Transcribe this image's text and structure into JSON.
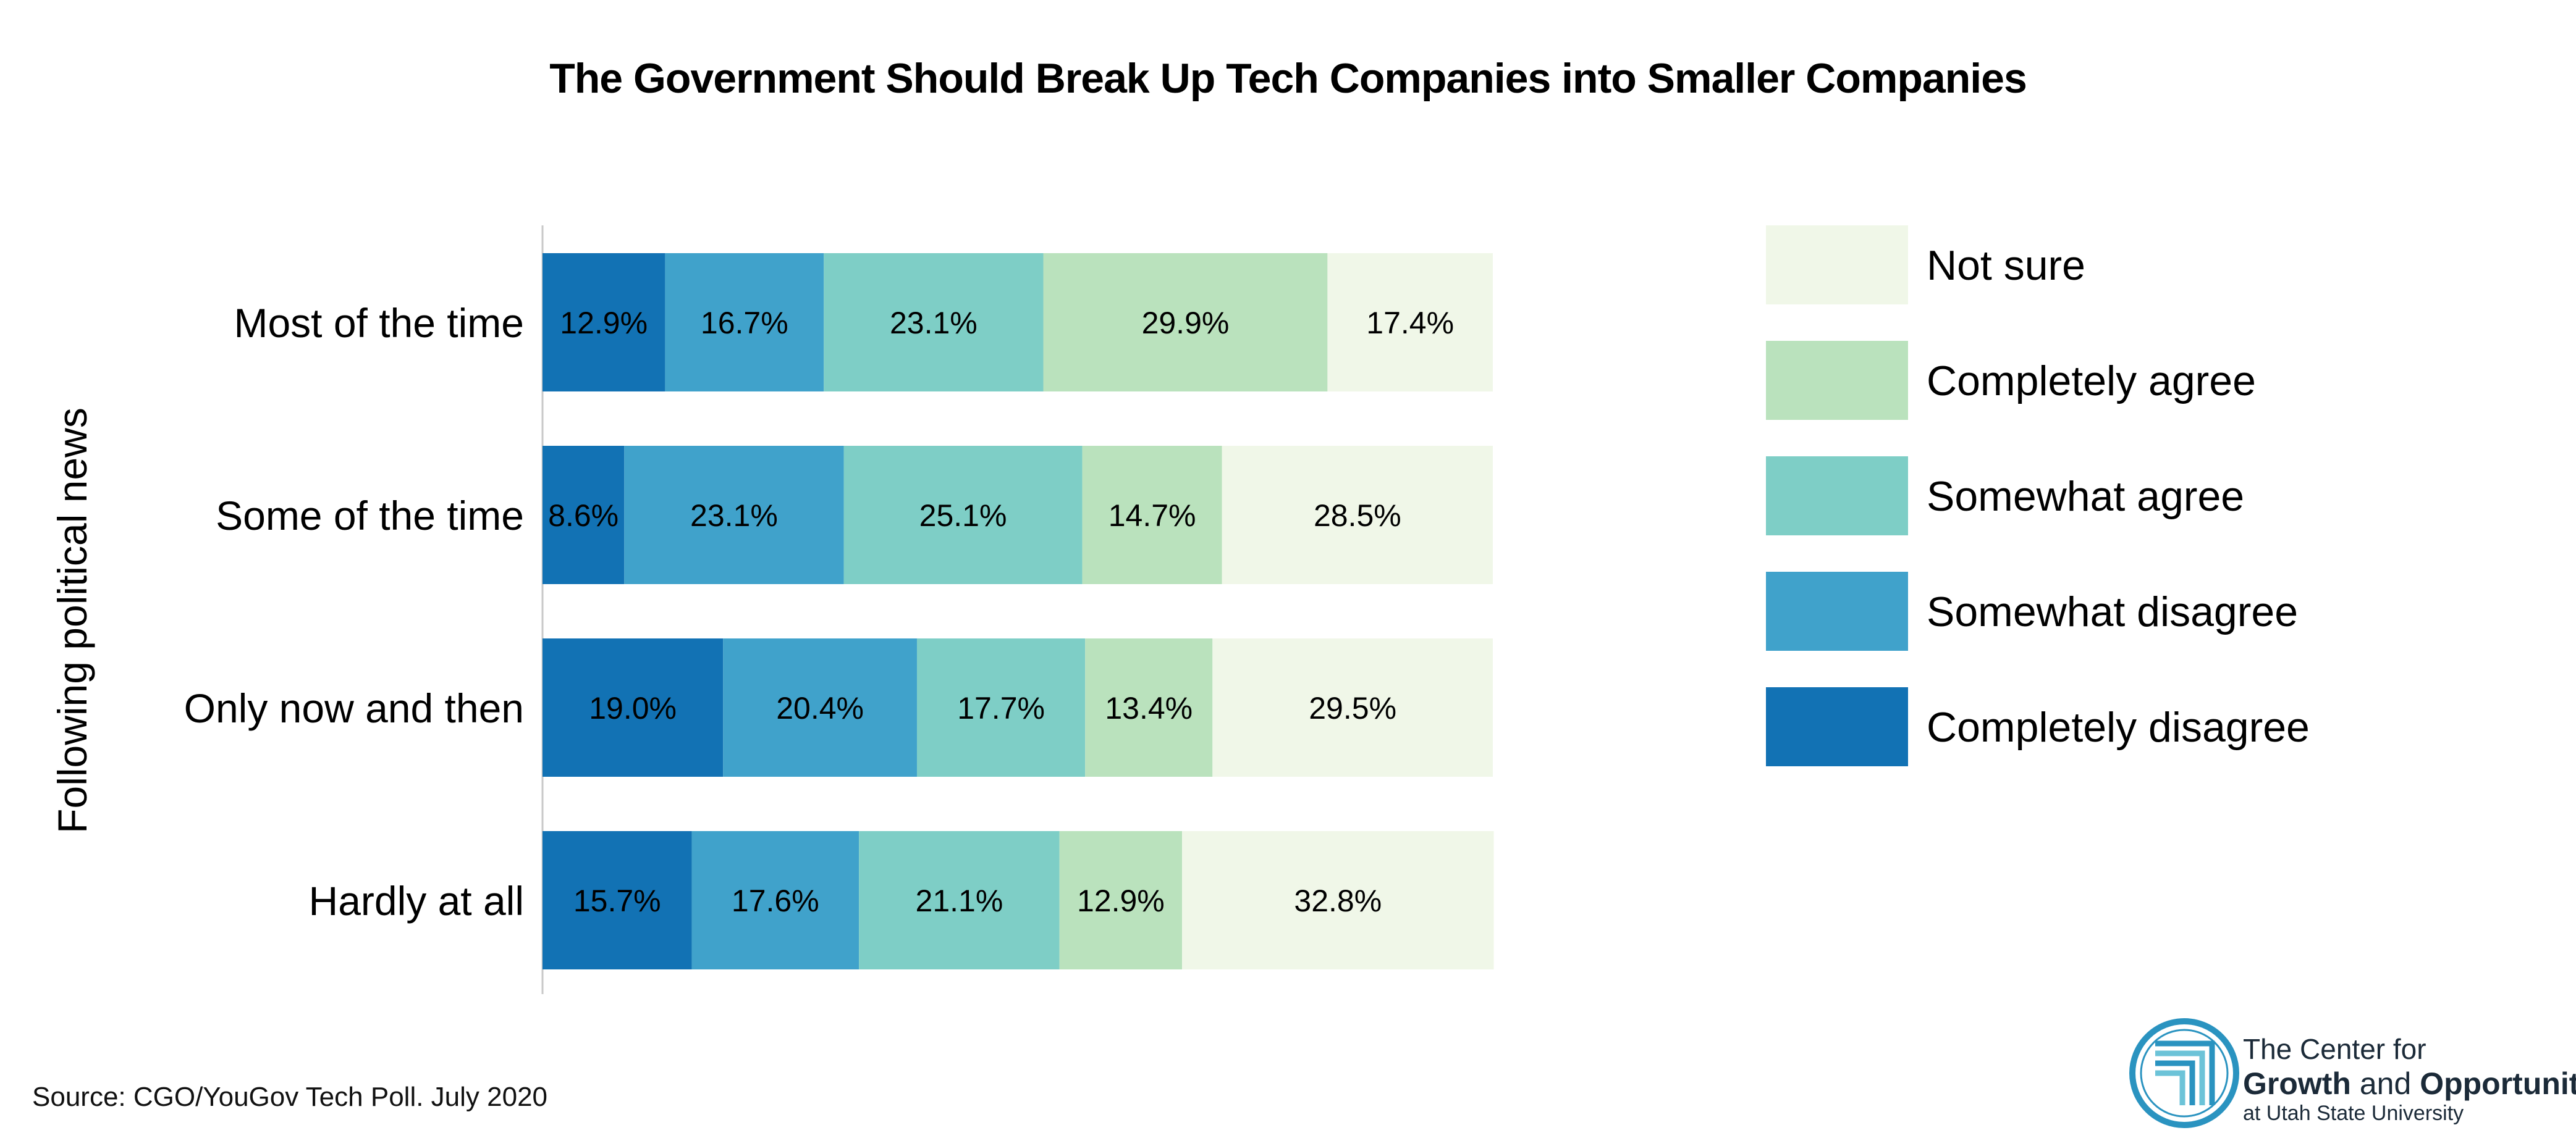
{
  "chart_data": {
    "type": "bar",
    "orientation": "horizontal",
    "stacked": true,
    "title": "The Government Should Break Up Tech Companies into Smaller Companies",
    "ylabel": "Following political news",
    "categories": [
      "Most of the time",
      "Some of the time",
      "Only now and then",
      "Hardly at all"
    ],
    "series": [
      {
        "name": "Completely disagree",
        "values": [
          12.9,
          8.6,
          19.0,
          15.7
        ],
        "labels": [
          "12.9%",
          "8.6%",
          "19.0%",
          "15.7%"
        ],
        "color": "#1272b4"
      },
      {
        "name": "Somewhat disagree",
        "values": [
          16.7,
          23.1,
          20.4,
          17.6
        ],
        "labels": [
          "16.7%",
          "23.1%",
          "20.4%",
          "17.6%"
        ],
        "color": "#40a2cb"
      },
      {
        "name": "Somewhat agree",
        "values": [
          23.1,
          25.1,
          17.7,
          21.1
        ],
        "labels": [
          "23.1%",
          "25.1%",
          "17.7%",
          "21.1%"
        ],
        "color": "#7ecec6"
      },
      {
        "name": "Completely agree",
        "values": [
          29.9,
          14.7,
          13.4,
          12.9
        ],
        "labels": [
          "29.9%",
          "14.7%",
          "13.4%",
          "12.9%"
        ],
        "color": "#bae2bd"
      },
      {
        "name": "Not sure",
        "values": [
          17.4,
          28.5,
          29.5,
          32.8
        ],
        "labels": [
          "17.4%",
          "28.5%",
          "29.5%",
          "32.8%"
        ],
        "color": "#f0f7e8"
      }
    ],
    "xlim": [
      0,
      100
    ],
    "legend_position": "right",
    "legend_order": [
      "Not sure",
      "Completely agree",
      "Somewhat agree",
      "Somewhat disagree",
      "Completely disagree"
    ],
    "grid": false
  },
  "source": "Source: CGO/YouGov Tech Poll. July 2020",
  "logo": {
    "line1": "The Center for",
    "line2_bold": "Growth",
    "line2_mid": " and ",
    "line2_bold2": "Opportunity",
    "line3": "at Utah State University"
  }
}
